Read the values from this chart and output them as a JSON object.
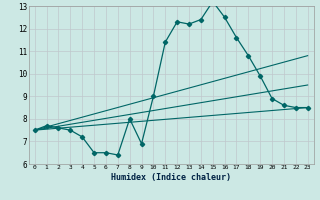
{
  "xlabel": "Humidex (Indice chaleur)",
  "bg_color": "#cce8e4",
  "grid_color": "#c0c8cc",
  "line_color": "#006666",
  "xlim": [
    -0.5,
    23.5
  ],
  "ylim": [
    6,
    13
  ],
  "xticks": [
    0,
    1,
    2,
    3,
    4,
    5,
    6,
    7,
    8,
    9,
    10,
    11,
    12,
    13,
    14,
    15,
    16,
    17,
    18,
    19,
    20,
    21,
    22,
    23
  ],
  "yticks": [
    6,
    7,
    8,
    9,
    10,
    11,
    12,
    13
  ],
  "series1_x": [
    0,
    1,
    2,
    3,
    4,
    5,
    6,
    7,
    8,
    9,
    10,
    11,
    12,
    13,
    14,
    15,
    16,
    17,
    18,
    19,
    20,
    21,
    22,
    23
  ],
  "series1_y": [
    7.5,
    7.7,
    7.6,
    7.5,
    7.2,
    6.5,
    6.5,
    6.4,
    8.0,
    6.9,
    9.0,
    11.4,
    12.3,
    12.2,
    12.4,
    13.2,
    12.5,
    11.6,
    10.8,
    9.9,
    8.9,
    8.6,
    8.5,
    8.5
  ],
  "series2_x": [
    0,
    23
  ],
  "series2_y": [
    7.5,
    10.8
  ],
  "series3_x": [
    0,
    23
  ],
  "series3_y": [
    7.5,
    8.5
  ],
  "series4_x": [
    0,
    23
  ],
  "series4_y": [
    7.5,
    9.5
  ]
}
